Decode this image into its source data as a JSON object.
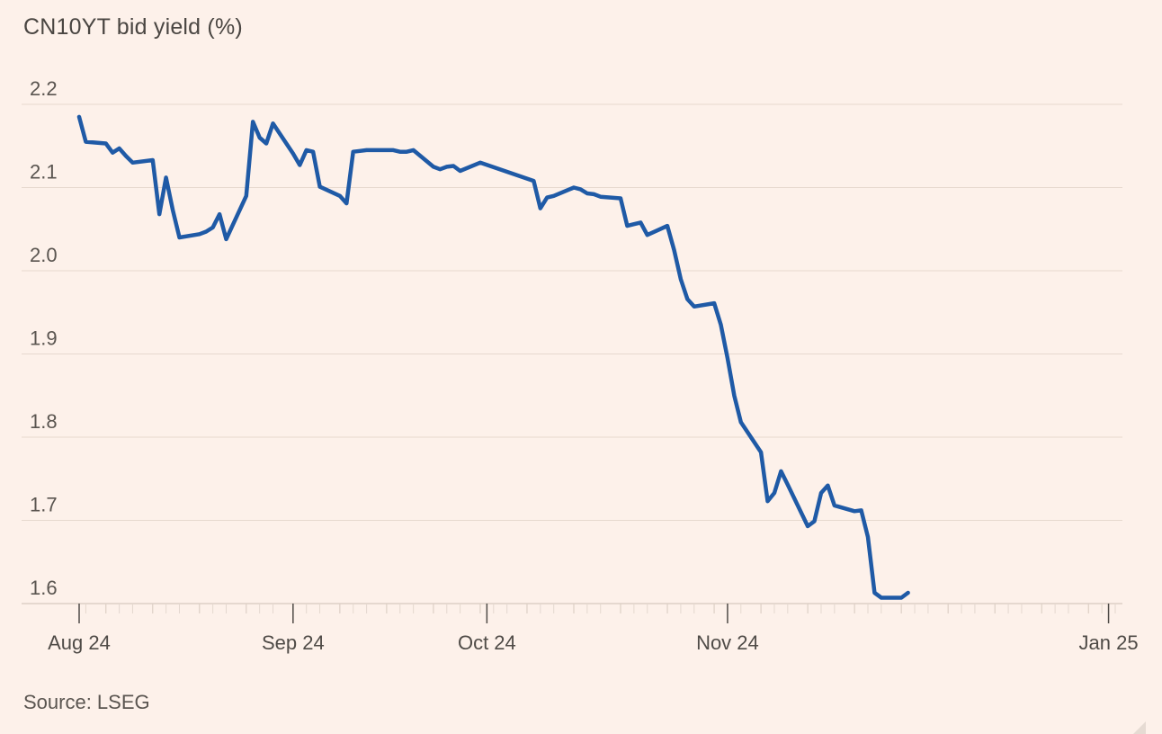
{
  "chart_data": {
    "type": "line",
    "title": "CN10YT bid yield (%)",
    "xlabel": "",
    "ylabel": "",
    "source": "Source: LSEG",
    "ylim": [
      1.6,
      2.2
    ],
    "yticks": [
      2.2,
      2.1,
      2.0,
      1.9,
      1.8,
      1.7,
      1.6
    ],
    "ytick_labels": [
      "2.2",
      "2.1",
      "2.0",
      "1.9",
      "1.8",
      "1.7",
      "1.6"
    ],
    "xlim": [
      "2024-08-01",
      "2025-01-03"
    ],
    "xticks": [
      {
        "date": "2024-08-01",
        "label": "Aug 24"
      },
      {
        "date": "2024-09-02",
        "label": "Sep 24"
      },
      {
        "date": "2024-10-01",
        "label": "Oct 24"
      },
      {
        "date": "2024-11-06",
        "label": "Nov 24"
      },
      {
        "date": "2025-01-02",
        "label": "Jan 25"
      }
    ],
    "grid": true,
    "line_color": "#1f5aa6",
    "series": [
      {
        "points": [
          [
            "2024-08-01",
            2.185
          ],
          [
            "2024-08-02",
            2.155
          ],
          [
            "2024-08-05",
            2.153
          ],
          [
            "2024-08-06",
            2.142
          ],
          [
            "2024-08-07",
            2.147
          ],
          [
            "2024-08-08",
            2.138
          ],
          [
            "2024-08-09",
            2.13
          ],
          [
            "2024-08-12",
            2.133
          ],
          [
            "2024-08-13",
            2.068
          ],
          [
            "2024-08-14",
            2.112
          ],
          [
            "2024-08-15",
            2.073
          ],
          [
            "2024-08-16",
            2.04
          ],
          [
            "2024-08-19",
            2.044
          ],
          [
            "2024-08-20",
            2.047
          ],
          [
            "2024-08-21",
            2.052
          ],
          [
            "2024-08-22",
            2.068
          ],
          [
            "2024-08-23",
            2.038
          ],
          [
            "2024-08-26",
            2.09
          ],
          [
            "2024-08-27",
            2.179
          ],
          [
            "2024-08-28",
            2.16
          ],
          [
            "2024-08-29",
            2.153
          ],
          [
            "2024-08-30",
            2.177
          ],
          [
            "2024-09-02",
            2.141
          ],
          [
            "2024-09-03",
            2.127
          ],
          [
            "2024-09-04",
            2.145
          ],
          [
            "2024-09-05",
            2.143
          ],
          [
            "2024-09-06",
            2.101
          ],
          [
            "2024-09-09",
            2.09
          ],
          [
            "2024-09-10",
            2.081
          ],
          [
            "2024-09-11",
            2.143
          ],
          [
            "2024-09-12",
            2.144
          ],
          [
            "2024-09-13",
            2.145
          ],
          [
            "2024-09-17",
            2.145
          ],
          [
            "2024-09-18",
            2.143
          ],
          [
            "2024-09-19",
            2.143
          ],
          [
            "2024-09-20",
            2.145
          ],
          [
            "2024-09-23",
            2.125
          ],
          [
            "2024-09-24",
            2.122
          ],
          [
            "2024-09-25",
            2.125
          ],
          [
            "2024-09-26",
            2.126
          ],
          [
            "2024-09-27",
            2.12
          ],
          [
            "2024-09-30",
            2.13
          ],
          [
            "2024-10-08",
            2.108
          ],
          [
            "2024-10-09",
            2.075
          ],
          [
            "2024-10-10",
            2.088
          ],
          [
            "2024-10-11",
            2.09
          ],
          [
            "2024-10-14",
            2.1
          ],
          [
            "2024-10-15",
            2.098
          ],
          [
            "2024-10-16",
            2.093
          ],
          [
            "2024-10-17",
            2.092
          ],
          [
            "2024-10-18",
            2.089
          ],
          [
            "2024-10-21",
            2.087
          ],
          [
            "2024-10-22",
            2.054
          ],
          [
            "2024-10-23",
            2.056
          ],
          [
            "2024-10-24",
            2.058
          ],
          [
            "2024-10-25",
            2.043
          ],
          [
            "2024-10-28",
            2.054
          ],
          [
            "2024-10-29",
            2.025
          ],
          [
            "2024-10-30",
            1.99
          ],
          [
            "2024-10-31",
            1.966
          ],
          [
            "2024-11-01",
            1.957
          ],
          [
            "2024-11-04",
            1.961
          ],
          [
            "2024-11-05",
            1.935
          ],
          [
            "2024-11-06",
            1.895
          ],
          [
            "2024-11-07",
            1.85
          ],
          [
            "2024-11-08",
            1.818
          ],
          [
            "2024-11-11",
            1.782
          ],
          [
            "2024-11-12",
            1.723
          ],
          [
            "2024-11-13",
            1.733
          ],
          [
            "2024-11-14",
            1.759
          ],
          [
            "2024-11-15",
            1.743
          ],
          [
            "2024-11-18",
            1.693
          ],
          [
            "2024-11-19",
            1.699
          ],
          [
            "2024-11-20",
            1.733
          ],
          [
            "2024-11-21",
            1.742
          ],
          [
            "2024-11-22",
            1.718
          ],
          [
            "2024-11-25",
            1.711
          ],
          [
            "2024-11-26",
            1.712
          ],
          [
            "2024-11-27",
            1.68
          ],
          [
            "2024-11-28",
            1.613
          ],
          [
            "2024-11-29",
            1.607
          ],
          [
            "2024-12-02",
            1.607
          ],
          [
            "2024-12-03",
            1.613
          ]
        ]
      }
    ]
  }
}
